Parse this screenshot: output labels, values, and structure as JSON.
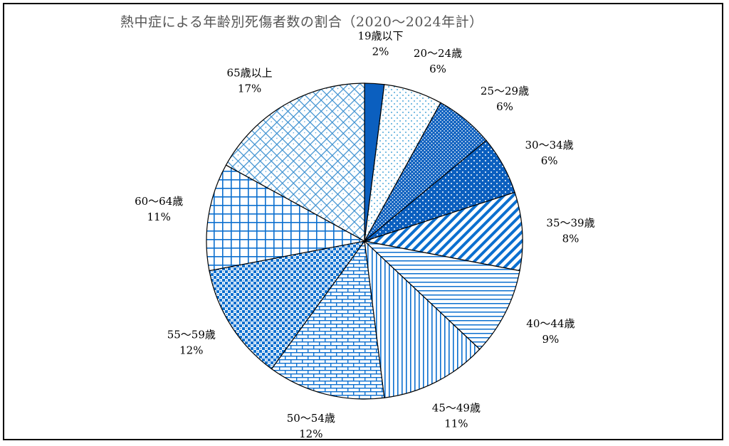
{
  "chart_data": {
    "type": "pie",
    "title": "熱中症による年齢別死傷者数の割合（2020～2024年計）",
    "start_angle": "12 o'clock",
    "direction": "clockwise",
    "slices": [
      {
        "label": "19歳以下",
        "percent_label": "2%",
        "value": 2,
        "color": "#0b5fbf",
        "pattern": "solid"
      },
      {
        "label": "20～24歳",
        "percent_label": "6%",
        "value": 6,
        "color": "#1f8fcf",
        "pattern": "sparse-dots"
      },
      {
        "label": "25～29歳",
        "percent_label": "6%",
        "value": 6,
        "color": "#0b5fbf",
        "pattern": "dense-dots"
      },
      {
        "label": "30～34歳",
        "percent_label": "6%",
        "value": 6,
        "color": "#0b5fbf",
        "pattern": "dark-dots"
      },
      {
        "label": "35～39歳",
        "percent_label": "8%",
        "value": 8,
        "color": "#0b6fcf",
        "pattern": "diagonal-stripes"
      },
      {
        "label": "40～44歳",
        "percent_label": "9%",
        "value": 9,
        "color": "#0b6fcf",
        "pattern": "horizontal-lines"
      },
      {
        "label": "45～49歳",
        "percent_label": "11%",
        "value": 11,
        "color": "#0b6fcf",
        "pattern": "vertical-lines"
      },
      {
        "label": "50～54歳",
        "percent_label": "12%",
        "value": 12,
        "color": "#0b6fcf",
        "pattern": "brick"
      },
      {
        "label": "55～59歳",
        "percent_label": "12%",
        "value": 12,
        "color": "#0b6fcf",
        "pattern": "checker"
      },
      {
        "label": "60～64歳",
        "percent_label": "11%",
        "value": 11,
        "color": "#0b6fcf",
        "pattern": "grid"
      },
      {
        "label": "65歳以上",
        "percent_label": "17%",
        "value": 17,
        "color": "#3a8fd0",
        "pattern": "diagonal-crosshatch"
      }
    ]
  }
}
